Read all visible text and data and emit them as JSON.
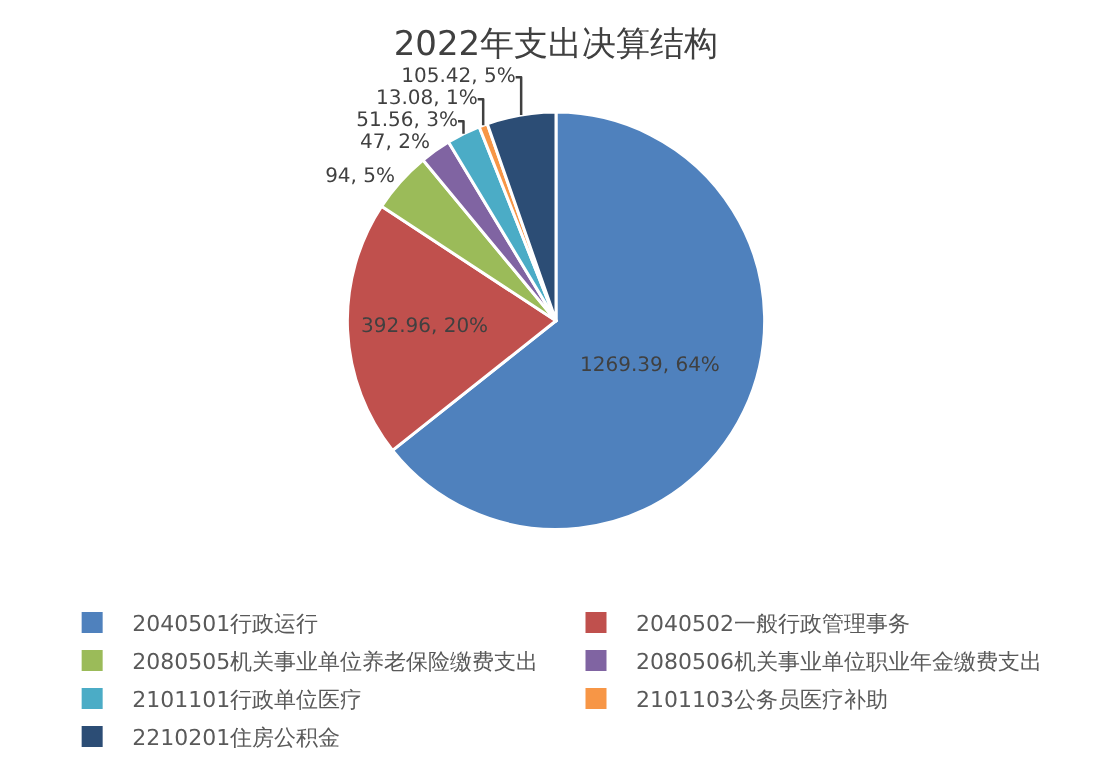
{
  "chart_data": {
    "type": "pie",
    "title": "2022年支出决算结构",
    "categories": [
      "2040501行政运行",
      "2040502一般行政管理事务",
      "2080505机关事业单位养老保险缴费支出",
      "2080506机关事业单位职业年金缴费支出",
      "2101101行政单位医疗",
      "2101103公务员医疗补助",
      "2210201住房公积金"
    ],
    "values": [
      1269.39,
      392.96,
      94,
      47,
      51.56,
      13.08,
      105.42
    ],
    "value_labels": [
      "1269.39, 64%",
      "392.96, 20%",
      "94, 5%",
      "47, 2%",
      "51.56, 3%",
      "13.08, 1%",
      "105.42, 5%"
    ],
    "colors": [
      "#4f81bd",
      "#c0504d",
      "#9bbb59",
      "#8064a2",
      "#4bacc6",
      "#f79646",
      "#2c4d75"
    ],
    "legend": "bottom"
  }
}
